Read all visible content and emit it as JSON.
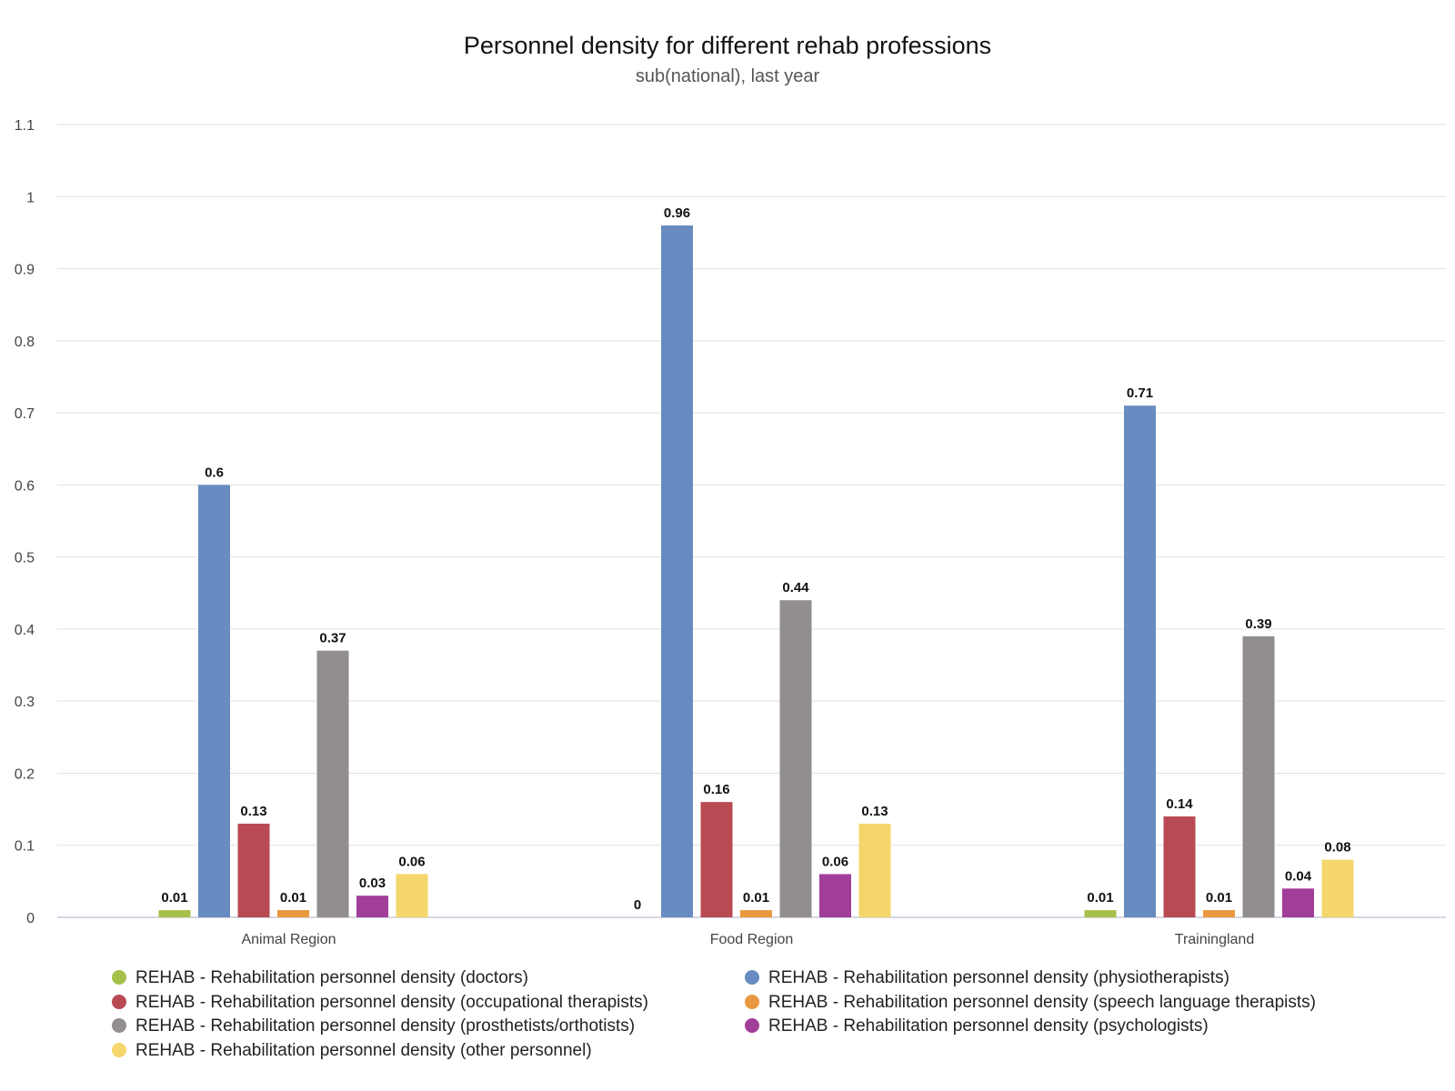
{
  "chart_data": {
    "type": "bar",
    "title": "Personnel density for different rehab professions",
    "subtitle": "sub(national), last year",
    "xlabel": "",
    "ylabel": "",
    "ylim": [
      0,
      1.1
    ],
    "yticks": [
      "0",
      "0.1",
      "0.2",
      "0.3",
      "0.4",
      "0.5",
      "0.6",
      "0.7",
      "0.8",
      "0.9",
      "1",
      "1.1"
    ],
    "grid": true,
    "legend_position": "bottom",
    "categories": [
      "Animal Region",
      "Food Region",
      "Trainingland"
    ],
    "series": [
      {
        "name": "REHAB - Rehabilitation personnel density (doctors)",
        "color": "#a6c14a",
        "values": [
          0.01,
          0,
          0.01
        ],
        "labels": [
          "0.01",
          "0",
          "0.01"
        ]
      },
      {
        "name": "REHAB - Rehabilitation personnel density (physiotherapists)",
        "color": "#688cc1",
        "values": [
          0.6,
          0.96,
          0.71
        ],
        "labels": [
          "0.6",
          "0.96",
          "0.71"
        ]
      },
      {
        "name": "REHAB - Rehabilitation personnel density (occupational therapists)",
        "color": "#b94a53",
        "values": [
          0.13,
          0.16,
          0.14
        ],
        "labels": [
          "0.13",
          "0.16",
          "0.14"
        ]
      },
      {
        "name": "REHAB - Rehabilitation personnel density (speech language therapists)",
        "color": "#e9983f",
        "values": [
          0.01,
          0.01,
          0.01
        ],
        "labels": [
          "0.01",
          "0.01",
          "0.01"
        ]
      },
      {
        "name": "REHAB - Rehabilitation personnel density (prosthetists/orthotists)",
        "color": "#928e8d",
        "values": [
          0.37,
          0.44,
          0.39
        ],
        "labels": [
          "0.37",
          "0.44",
          "0.39"
        ]
      },
      {
        "name": "REHAB - Rehabilitation personnel density (psychologists)",
        "color": "#a03e9a",
        "values": [
          0.03,
          0.06,
          0.04
        ],
        "labels": [
          "0.03",
          "0.06",
          "0.04"
        ]
      },
      {
        "name": "REHAB - Rehabilitation personnel density (other personnel)",
        "color": "#f4d66c",
        "values": [
          0.06,
          0.13,
          0.08
        ],
        "labels": [
          "0.06",
          "0.13",
          "0.08"
        ]
      }
    ]
  }
}
